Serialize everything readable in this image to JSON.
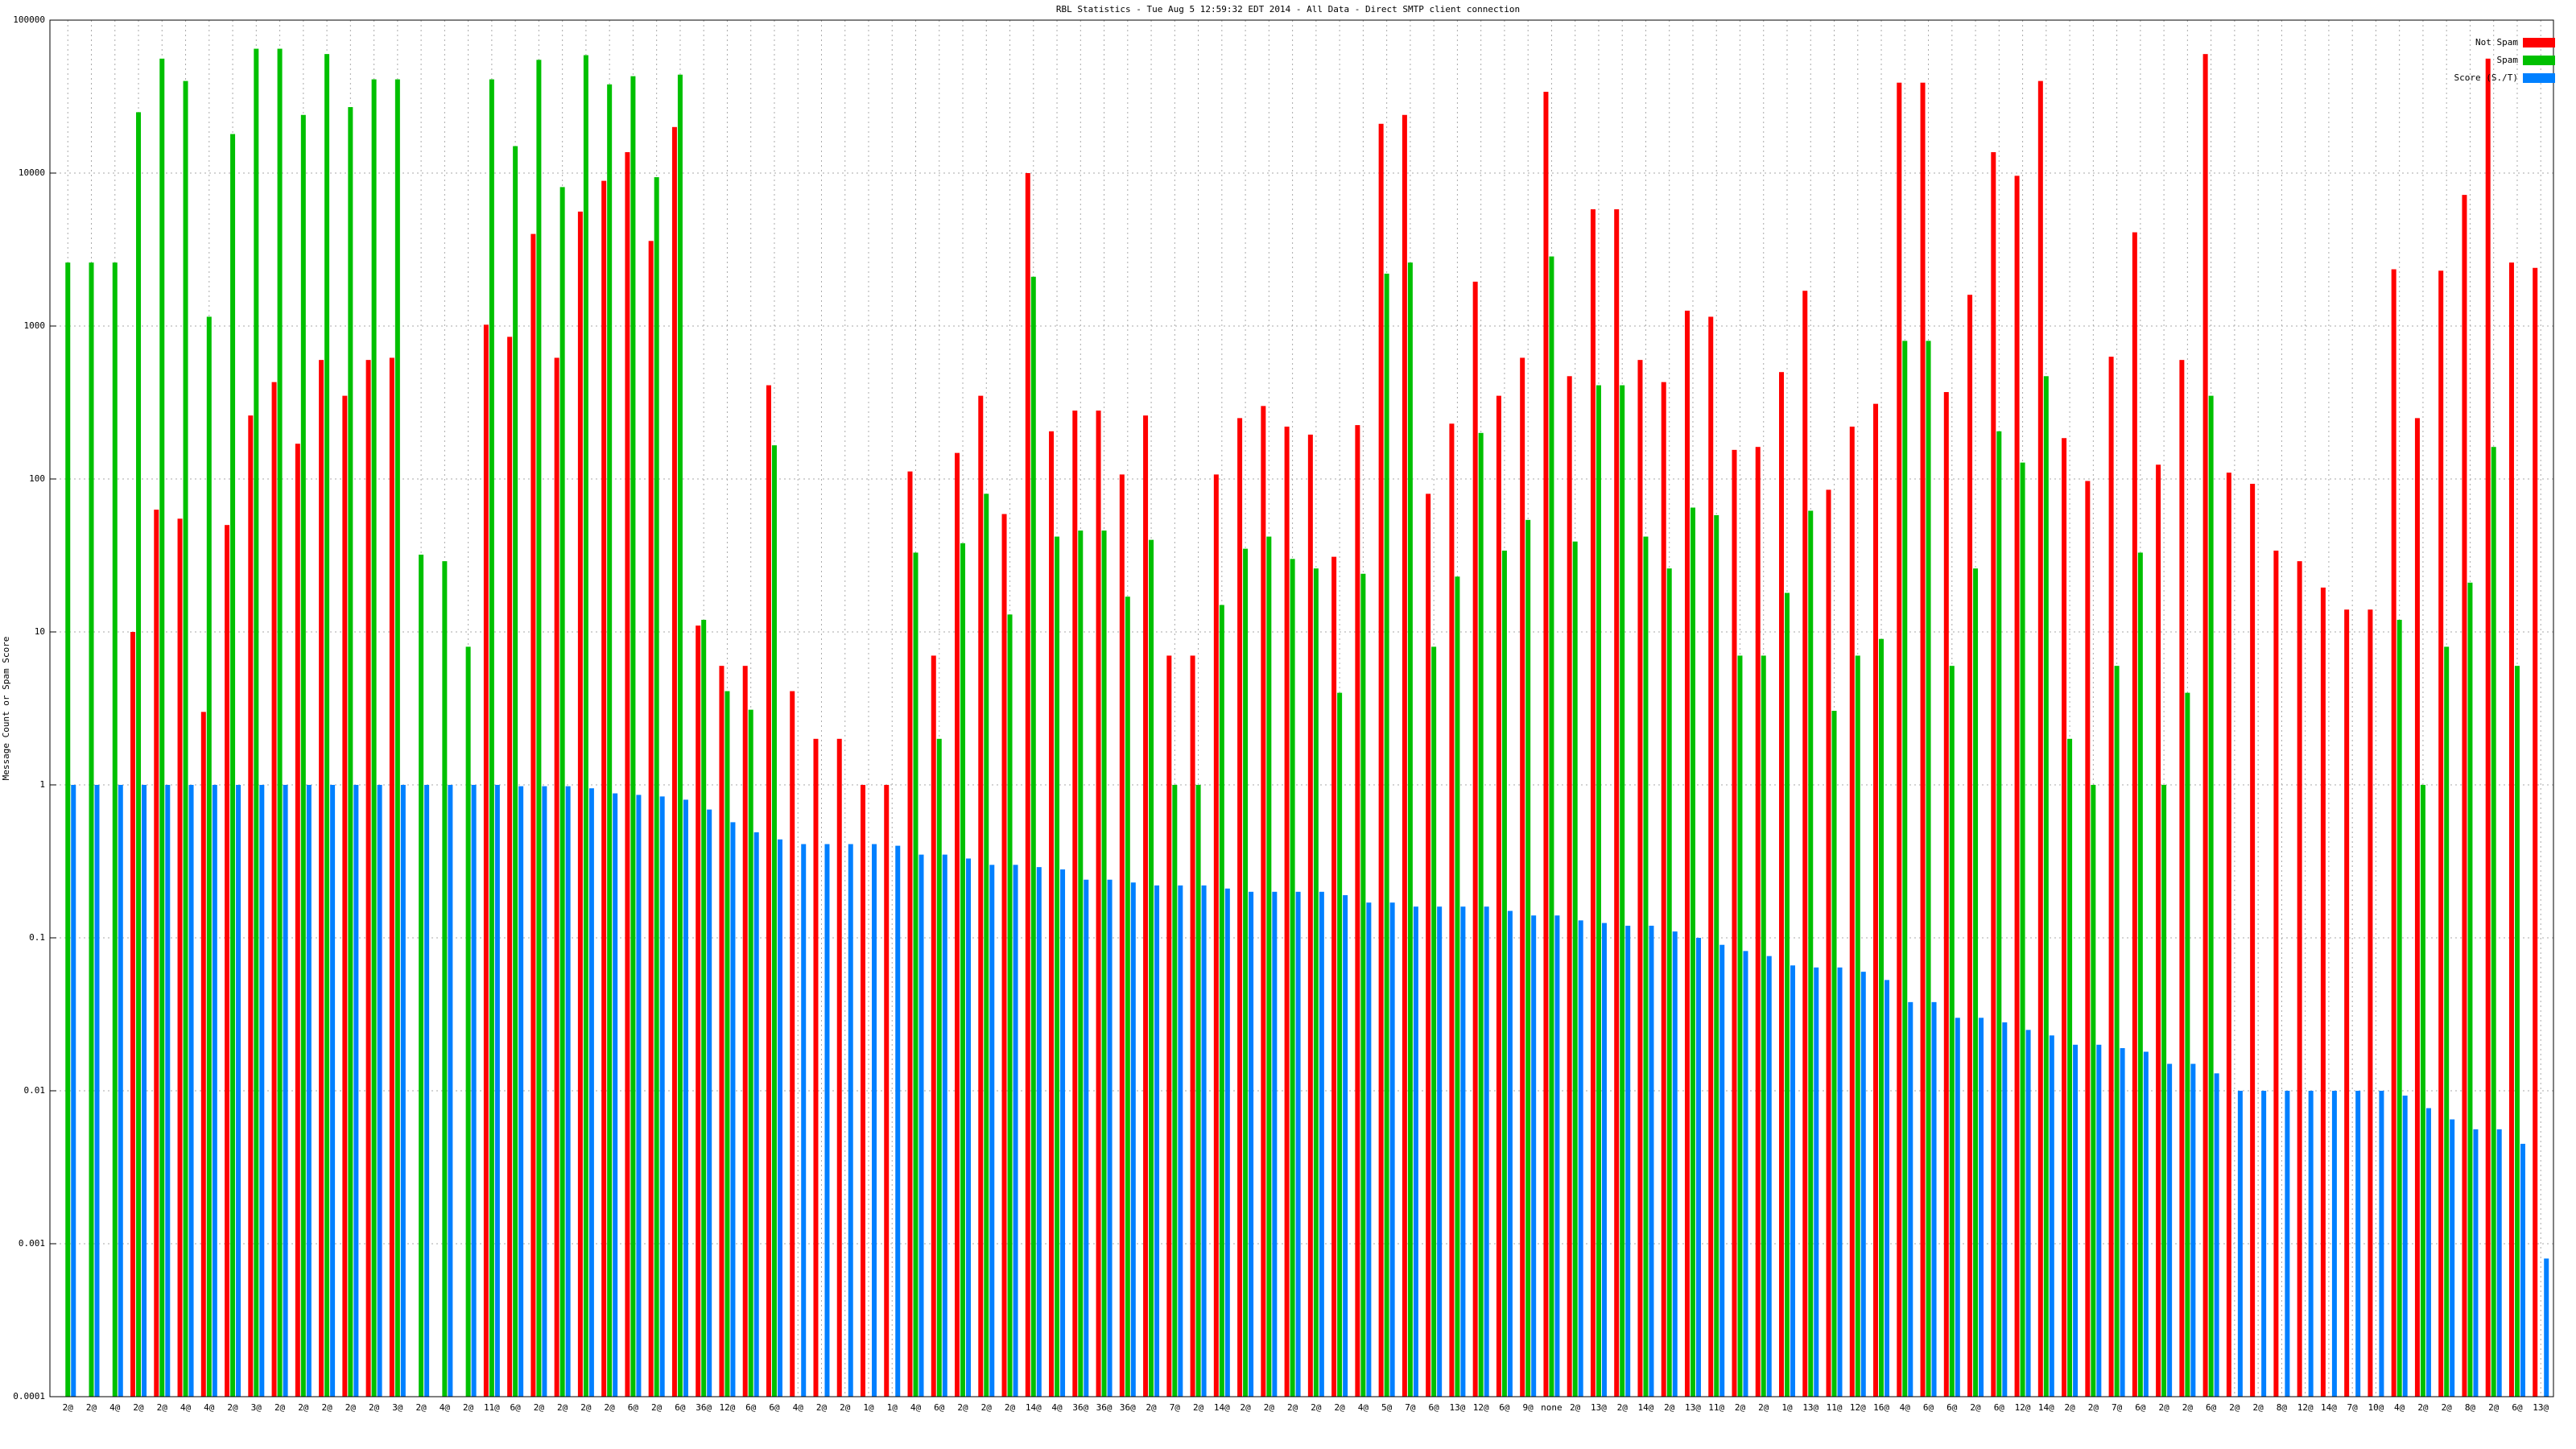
{
  "chart_data": {
    "type": "bar",
    "title": "RBL Statistics - Tue Aug  5 12:59:32 EDT 2014 - All Data - Direct SMTP client connection",
    "y_label": "Message Count or Spam Score",
    "ylog": true,
    "grid": true,
    "legend": "top-right",
    "ylim": [
      0.0001,
      100000
    ],
    "yticks": [
      0.0001,
      0.001,
      0.01,
      0.1,
      1,
      10,
      100,
      1000,
      10000,
      100000
    ],
    "categories": [
      "2@",
      "2@",
      "4@",
      "2@",
      "2@",
      "4@",
      "4@",
      "2@",
      "3@",
      "2@",
      "2@",
      "2@",
      "2@",
      "2@",
      "3@",
      "2@",
      "4@",
      "2@",
      "11@",
      "6@",
      "2@",
      "2@",
      "2@",
      "2@",
      "6@",
      "2@",
      "6@",
      "36@",
      "12@",
      "6@",
      "6@",
      "4@",
      "2@",
      "2@",
      "1@",
      "1@",
      "4@",
      "6@",
      "2@",
      "2@",
      "2@",
      "14@",
      "4@",
      "36@",
      "36@",
      "36@",
      "2@",
      "7@",
      "2@",
      "14@",
      "2@",
      "2@",
      "2@",
      "2@",
      "2@",
      "4@",
      "5@",
      "7@",
      "6@",
      "13@",
      "12@",
      "6@",
      "9@",
      "none",
      "2@",
      "13@",
      "2@",
      "14@",
      "2@",
      "13@",
      "11@",
      "2@",
      "2@",
      "1@",
      "13@",
      "11@",
      "12@",
      "16@",
      "4@",
      "6@",
      "6@",
      "2@",
      "6@",
      "12@",
      "14@",
      "2@",
      "2@",
      "7@",
      "6@",
      "2@",
      "2@",
      "6@",
      "2@",
      "2@",
      "8@",
      "12@",
      "14@",
      "7@",
      "10@",
      "4@",
      "2@",
      "2@",
      "8@",
      "2@",
      "6@",
      "13@"
    ],
    "series": [
      {
        "name": "Not Spam",
        "color": "#ff0000",
        "values": [
          null,
          null,
          null,
          10,
          63,
          55,
          3,
          50,
          260,
          430,
          170,
          600,
          350,
          600,
          620,
          null,
          null,
          null,
          1020,
          850,
          4000,
          620,
          5600,
          8900,
          13700,
          3600,
          20000,
          11,
          6,
          6,
          410,
          4.1,
          2,
          2,
          1,
          1,
          112,
          7,
          148,
          350,
          59,
          10000,
          205,
          280,
          280,
          107,
          260,
          7,
          7,
          107,
          250,
          300,
          220,
          195,
          31,
          225,
          21000,
          24000,
          80,
          230,
          1950,
          350,
          620,
          34000,
          470,
          5800,
          5800,
          600,
          430,
          1260,
          1150,
          155,
          162,
          500,
          1700,
          85,
          220,
          310,
          39000,
          39000,
          370,
          1600,
          13700,
          9600,
          40000,
          185,
          97,
          630,
          4100,
          124,
          600,
          60000,
          110,
          93,
          34,
          29,
          19.5,
          14,
          14,
          2350,
          250,
          2300,
          7200,
          56000,
          2600,
          2400
        ]
      },
      {
        "name": "Spam",
        "color": "#00c000",
        "values": [
          2600,
          2600,
          2600,
          25000,
          56000,
          40000,
          1150,
          18000,
          65000,
          65000,
          24000,
          60000,
          27000,
          41000,
          41000,
          32,
          29,
          8,
          41000,
          15000,
          55000,
          8100,
          59000,
          38000,
          43000,
          9400,
          44000,
          12,
          4.1,
          3.1,
          166,
          null,
          null,
          null,
          null,
          null,
          33,
          2,
          38,
          80,
          13,
          2100,
          42,
          46,
          46,
          17,
          40,
          1,
          1,
          15,
          35,
          42,
          30,
          26,
          4,
          24,
          2200,
          2600,
          8,
          23,
          200,
          34,
          54,
          2850,
          39,
          410,
          410,
          42,
          26,
          65,
          58,
          7,
          7,
          18,
          62,
          3.05,
          7,
          9,
          800,
          800,
          6,
          26,
          205,
          128,
          470,
          2,
          1,
          6,
          33,
          1,
          4,
          350,
          null,
          null,
          null,
          null,
          null,
          null,
          null,
          12,
          1,
          8,
          21,
          162,
          6,
          null
        ]
      },
      {
        "name": "Score (S./T)",
        "color": "#0080ff",
        "values": [
          1,
          1,
          1,
          1,
          1,
          1,
          1,
          1,
          1,
          1,
          1,
          1,
          1,
          1,
          1,
          1,
          1,
          1,
          1,
          0.98,
          0.98,
          0.98,
          0.95,
          0.88,
          0.86,
          0.84,
          0.8,
          0.69,
          0.57,
          0.49,
          0.44,
          0.41,
          0.41,
          0.41,
          0.41,
          0.4,
          0.35,
          0.35,
          0.33,
          0.3,
          0.3,
          0.29,
          0.28,
          0.24,
          0.24,
          0.23,
          0.22,
          0.22,
          0.22,
          0.21,
          0.2,
          0.2,
          0.2,
          0.2,
          0.19,
          0.17,
          0.17,
          0.16,
          0.16,
          0.16,
          0.16,
          0.15,
          0.14,
          0.14,
          0.13,
          0.125,
          0.12,
          0.12,
          0.11,
          0.1,
          0.09,
          0.082,
          0.076,
          0.066,
          0.064,
          0.064,
          0.06,
          0.053,
          0.038,
          0.038,
          0.03,
          0.03,
          0.028,
          0.025,
          0.023,
          0.02,
          0.02,
          0.019,
          0.018,
          0.015,
          0.015,
          0.013,
          0.01,
          0.01,
          0.01,
          0.01,
          0.01,
          0.01,
          0.01,
          0.0093,
          0.0077,
          0.0065,
          0.0056,
          0.0056,
          0.0045,
          0.0008
        ]
      }
    ]
  }
}
